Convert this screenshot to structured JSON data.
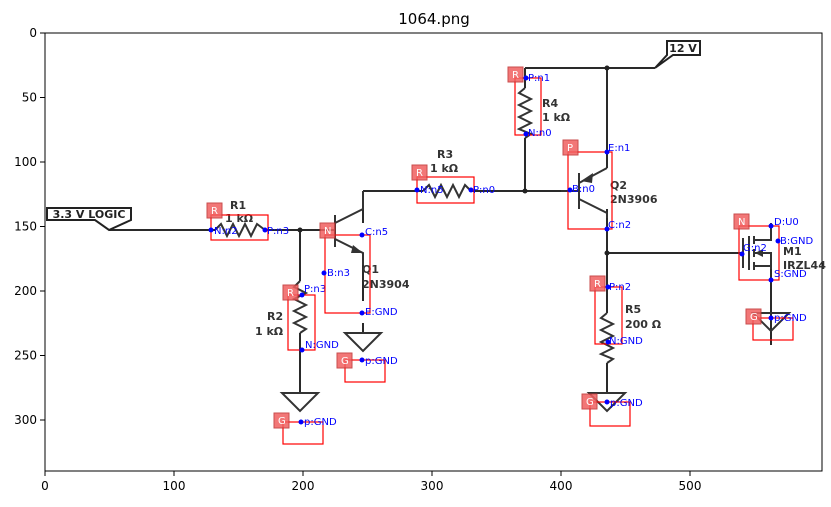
{
  "figure": {
    "title": "1064.png"
  },
  "axes": {
    "x_ticks": [
      "0",
      "100",
      "200",
      "300",
      "400",
      "500"
    ],
    "y_ticks": [
      "0",
      "50",
      "100",
      "150",
      "200",
      "250",
      "300"
    ]
  },
  "flags": {
    "vcc": "12 V",
    "logic": "3.3 V LOGIC"
  },
  "labels": {
    "r1": [
      "R1",
      "1 kΩ"
    ],
    "r2": [
      "R2",
      "1 kΩ"
    ],
    "r3": [
      "R3",
      "1 kΩ"
    ],
    "r4": [
      "R4",
      "1 kΩ"
    ],
    "r5": [
      "R5",
      "200 Ω"
    ],
    "q1": [
      "Q1",
      "2N3904"
    ],
    "q2": [
      "Q2",
      "2N3906"
    ],
    "m1": [
      "M1",
      "IRZL44"
    ]
  },
  "detections": [
    {
      "id": "r1",
      "tag": "R",
      "pins": [
        "N:n2",
        "P:n3"
      ]
    },
    {
      "id": "r2",
      "tag": "R",
      "pins": [
        "P:n3",
        "N:GND"
      ]
    },
    {
      "id": "r3",
      "tag": "R",
      "pins": [
        "N:n5",
        "P:n0"
      ]
    },
    {
      "id": "r4",
      "tag": "R",
      "pins": [
        "P:n1",
        "N:n0"
      ]
    },
    {
      "id": "r5",
      "tag": "R",
      "pins": [
        "P:n2",
        "N:GND"
      ]
    },
    {
      "id": "q1",
      "tag": "N",
      "pins": [
        "C:n5",
        "B:n3",
        "E:GND"
      ]
    },
    {
      "id": "q2",
      "tag": "P",
      "pins": [
        "E:n1",
        "B:n0",
        "C:n2"
      ]
    },
    {
      "id": "m1",
      "tag": "N",
      "pins": [
        "D:U0",
        "B:GND",
        "G:n2",
        "S:GND"
      ]
    },
    {
      "id": "g1",
      "tag": "G",
      "pins": [
        "p:GND"
      ]
    },
    {
      "id": "g2",
      "tag": "G",
      "pins": [
        "p:GND"
      ]
    },
    {
      "id": "g3",
      "tag": "G",
      "pins": [
        "p:GND"
      ]
    },
    {
      "id": "g4",
      "tag": "G",
      "pins": [
        "p:GND"
      ]
    }
  ]
}
